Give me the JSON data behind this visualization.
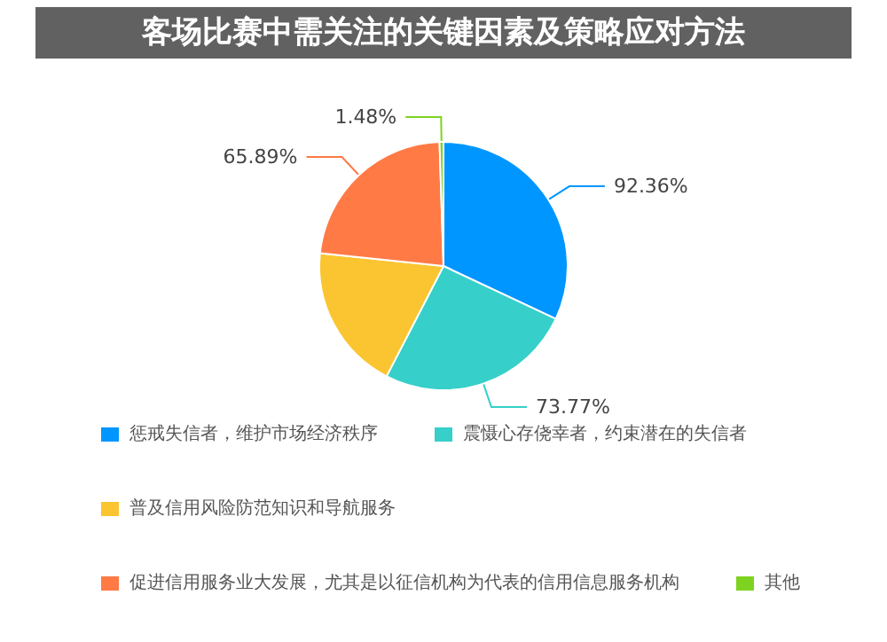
{
  "chart_data": {
    "type": "pie",
    "title": "客场比赛中需关注的关键因素及策略应对方法",
    "categories": [
      "惩戒失信者，维护市场经济秩序",
      "震慑心存侥幸者，约束潜在的失信者",
      "普及信用风险防范知识和导航服务",
      "促进信用服务业大发展，尤其是以征信机构为代表的信用信息服务机构",
      "其他"
    ],
    "values": [
      92.36,
      73.77,
      55,
      65.89,
      1.48
    ],
    "value_labels": [
      "92.36%",
      "73.77%",
      null,
      "65.89%",
      "1.48%"
    ],
    "colors": [
      "#0096ff",
      "#36cfc9",
      "#fbc531",
      "#ff7a45",
      "#7ed321"
    ],
    "legend": "bottom"
  }
}
